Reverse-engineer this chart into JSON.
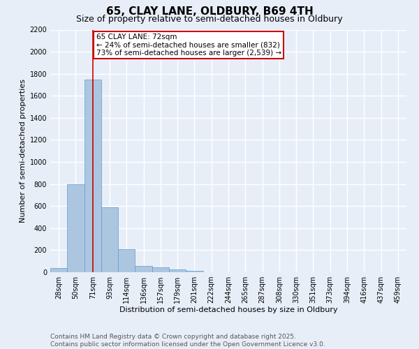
{
  "title1": "65, CLAY LANE, OLDBURY, B69 4TH",
  "title2": "Size of property relative to semi-detached houses in Oldbury",
  "xlabel": "Distribution of semi-detached houses by size in Oldbury",
  "ylabel": "Number of semi-detached properties",
  "categories": [
    "28sqm",
    "50sqm",
    "71sqm",
    "93sqm",
    "114sqm",
    "136sqm",
    "157sqm",
    "179sqm",
    "201sqm",
    "222sqm",
    "244sqm",
    "265sqm",
    "287sqm",
    "308sqm",
    "330sqm",
    "351sqm",
    "373sqm",
    "394sqm",
    "416sqm",
    "437sqm",
    "459sqm"
  ],
  "values": [
    40,
    800,
    1750,
    590,
    210,
    60,
    45,
    25,
    15,
    0,
    0,
    0,
    0,
    0,
    0,
    0,
    0,
    0,
    0,
    0,
    0
  ],
  "bar_color": "#adc6e0",
  "bar_edge_color": "#5b9bd5",
  "vline_x": 2,
  "vline_color": "#cc0000",
  "annotation_title": "65 CLAY LANE: 72sqm",
  "annotation_line1": "← 24% of semi-detached houses are smaller (832)",
  "annotation_line2": "73% of semi-detached houses are larger (2,539) →",
  "annotation_box_color": "#cc0000",
  "ylim": [
    0,
    2200
  ],
  "yticks": [
    0,
    200,
    400,
    600,
    800,
    1000,
    1200,
    1400,
    1600,
    1800,
    2000,
    2200
  ],
  "background_color": "#e8eef8",
  "grid_color": "#ffffff",
  "footer_line1": "Contains HM Land Registry data © Crown copyright and database right 2025.",
  "footer_line2": "Contains public sector information licensed under the Open Government Licence v3.0.",
  "title1_fontsize": 11,
  "title2_fontsize": 9,
  "xlabel_fontsize": 8,
  "ylabel_fontsize": 8,
  "tick_fontsize": 7,
  "footer_fontsize": 6.5,
  "annotation_fontsize": 7.5
}
